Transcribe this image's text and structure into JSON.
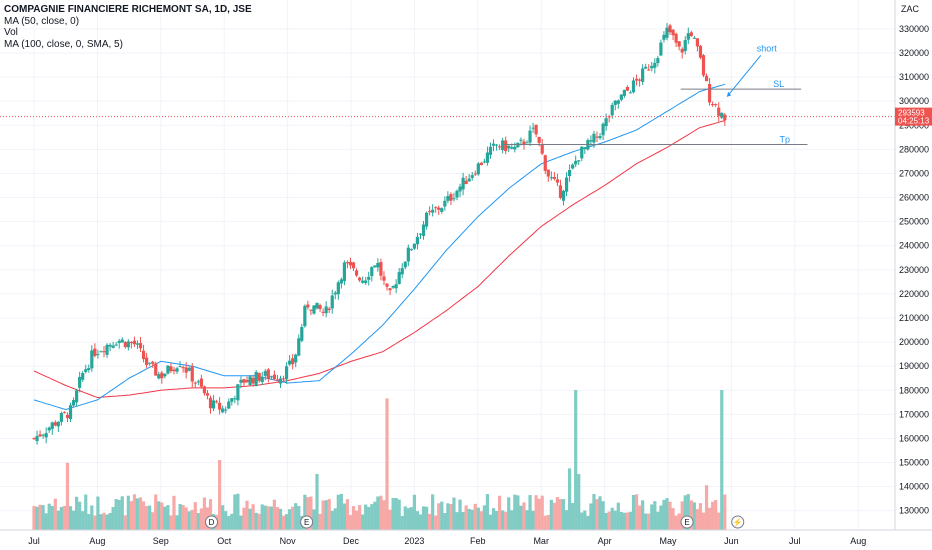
{
  "legend": {
    "title": "COMPAGNIE FINANCIERE RICHEMONT SA, 1D, JSE",
    "ma50": "MA (50, close, 0)",
    "vol": "Vol",
    "ma100": "MA (100, close, 0, SMA, 5)"
  },
  "price_axis": {
    "currency": "ZAC",
    "current_price": "293593",
    "countdown": "04:25:13"
  },
  "colors": {
    "up": "#26a69a",
    "down": "#ef5350",
    "ma50": "#2196f3",
    "ma100": "#f23645",
    "vol_up": "#80cbc4",
    "vol_down": "#f7a9a7",
    "line": "#787b86",
    "grid": "#f0f3fa"
  },
  "chart_data": {
    "type": "candlestick",
    "ylim": [
      122000,
      342000
    ],
    "yticks": [
      130000,
      140000,
      150000,
      160000,
      170000,
      180000,
      190000,
      200000,
      210000,
      220000,
      230000,
      240000,
      250000,
      260000,
      270000,
      280000,
      290000,
      300000,
      310000,
      320000,
      330000
    ],
    "xticks": [
      {
        "label": "Jul",
        "month": 0
      },
      {
        "label": "Aug",
        "month": 1
      },
      {
        "label": "Sep",
        "month": 2
      },
      {
        "label": "Oct",
        "month": 3
      },
      {
        "label": "Nov",
        "month": 4
      },
      {
        "label": "Dec",
        "month": 5
      },
      {
        "label": "2023",
        "month": 6
      },
      {
        "label": "Feb",
        "month": 7
      },
      {
        "label": "Mar",
        "month": 8
      },
      {
        "label": "Apr",
        "month": 9
      },
      {
        "label": "May",
        "month": 10
      },
      {
        "label": "Jun",
        "month": 11
      },
      {
        "label": "Jul",
        "month": 12
      },
      {
        "label": "Aug",
        "month": 13
      }
    ],
    "price_keypoints": [
      [
        0,
        160000
      ],
      [
        0.3,
        166000
      ],
      [
        0.6,
        172000
      ],
      [
        0.75,
        186000
      ],
      [
        0.95,
        196000
      ],
      [
        1.3,
        201000
      ],
      [
        1.6,
        199000
      ],
      [
        1.8,
        190000
      ],
      [
        2.0,
        186000
      ],
      [
        2.3,
        192000
      ],
      [
        2.6,
        182000
      ],
      [
        2.8,
        174000
      ],
      [
        3.0,
        172000
      ],
      [
        3.3,
        184000
      ],
      [
        3.6,
        186000
      ],
      [
        3.9,
        186000
      ],
      [
        4.1,
        192000
      ],
      [
        4.3,
        216000
      ],
      [
        4.6,
        212000
      ],
      [
        4.9,
        232000
      ],
      [
        5.2,
        226000
      ],
      [
        5.4,
        234000
      ],
      [
        5.6,
        218000
      ],
      [
        5.8,
        232000
      ],
      [
        6.2,
        252000
      ],
      [
        6.5,
        258000
      ],
      [
        6.9,
        270000
      ],
      [
        7.3,
        282000
      ],
      [
        7.6,
        280000
      ],
      [
        7.9,
        288000
      ],
      [
        8.1,
        270000
      ],
      [
        8.3,
        262000
      ],
      [
        8.6,
        278000
      ],
      [
        8.9,
        286000
      ],
      [
        9.2,
        300000
      ],
      [
        9.5,
        308000
      ],
      [
        9.8,
        318000
      ],
      [
        10.0,
        330000
      ],
      [
        10.2,
        320000
      ],
      [
        10.35,
        330000
      ],
      [
        10.5,
        318000
      ],
      [
        10.65,
        302000
      ],
      [
        10.8,
        296000
      ],
      [
        10.9,
        293593
      ]
    ],
    "ma50_keypoints": [
      [
        0,
        176000
      ],
      [
        0.5,
        172000
      ],
      [
        1.0,
        176000
      ],
      [
        1.5,
        185000
      ],
      [
        2.0,
        192000
      ],
      [
        2.5,
        190000
      ],
      [
        3.0,
        186000
      ],
      [
        3.5,
        186000
      ],
      [
        4.0,
        183000
      ],
      [
        4.5,
        184000
      ],
      [
        5.0,
        195000
      ],
      [
        5.5,
        207000
      ],
      [
        6.0,
        222000
      ],
      [
        6.5,
        238000
      ],
      [
        7.0,
        252000
      ],
      [
        7.5,
        264000
      ],
      [
        8.0,
        274000
      ],
      [
        8.5,
        279000
      ],
      [
        9.0,
        283000
      ],
      [
        9.5,
        288000
      ],
      [
        10.0,
        296000
      ],
      [
        10.5,
        304000
      ],
      [
        10.9,
        307000
      ]
    ],
    "ma100_keypoints": [
      [
        0,
        188000
      ],
      [
        0.5,
        182000
      ],
      [
        1.0,
        177000
      ],
      [
        1.5,
        178000
      ],
      [
        2.0,
        180000
      ],
      [
        2.5,
        181000
      ],
      [
        3.0,
        181000
      ],
      [
        3.5,
        182000
      ],
      [
        4.0,
        184000
      ],
      [
        4.5,
        187000
      ],
      [
        5.0,
        192000
      ],
      [
        5.5,
        196000
      ],
      [
        6.0,
        204000
      ],
      [
        6.5,
        213000
      ],
      [
        7.0,
        223000
      ],
      [
        7.5,
        236000
      ],
      [
        8.0,
        248000
      ],
      [
        8.5,
        257000
      ],
      [
        9.0,
        265000
      ],
      [
        9.5,
        274000
      ],
      [
        10.0,
        281000
      ],
      [
        10.5,
        289000
      ],
      [
        10.9,
        292000
      ]
    ],
    "volume_spikes": [
      {
        "month": 0.55,
        "value": 0.24
      },
      {
        "month": 2.95,
        "value": 0.25
      },
      {
        "month": 4.45,
        "value": 0.2
      },
      {
        "month": 5.55,
        "value": 0.47
      },
      {
        "month": 8.45,
        "value": 0.22
      },
      {
        "month": 8.55,
        "value": 0.5
      },
      {
        "month": 8.6,
        "value": 0.2
      },
      {
        "month": 10.6,
        "value": 0.16
      },
      {
        "month": 10.85,
        "value": 0.5
      }
    ],
    "horizontal_lines": [
      {
        "label": "SL",
        "value": 305000,
        "from_month": 10.2,
        "to_month": 12.1
      },
      {
        "label": "Tp",
        "value": 282000,
        "from_month": 7.4,
        "to_month": 12.2
      }
    ],
    "annotations": [
      {
        "text": "short",
        "month": 11.4,
        "value": 319000
      }
    ],
    "event_markers": [
      {
        "label": "D",
        "month": 2.8
      },
      {
        "label": "E",
        "month": 4.3
      },
      {
        "label": "E",
        "month": 10.3
      },
      {
        "label": "⚡",
        "month": 11.1
      }
    ]
  }
}
